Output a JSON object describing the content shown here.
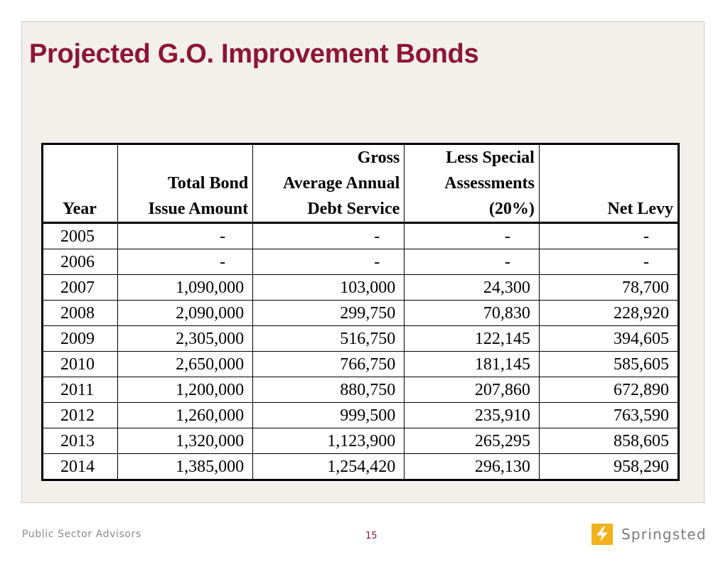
{
  "slide": {
    "title": "Projected G.O. Improvement Bonds"
  },
  "table": {
    "headers": [
      {
        "lines": [
          "Year"
        ]
      },
      {
        "lines": [
          "Total Bond",
          "Issue Amount"
        ]
      },
      {
        "lines": [
          "Gross",
          "Average Annual",
          "Debt Service"
        ]
      },
      {
        "lines": [
          "Less Special",
          "Assessments",
          "(20%)"
        ]
      },
      {
        "lines": [
          "Net Levy"
        ]
      }
    ],
    "rows": [
      {
        "year": "2005",
        "total": "-",
        "gross": "-",
        "less": "-",
        "net": "-"
      },
      {
        "year": "2006",
        "total": "-",
        "gross": "-",
        "less": "-",
        "net": "-"
      },
      {
        "year": "2007",
        "total": "1,090,000",
        "gross": "103,000",
        "less": "24,300",
        "net": "78,700"
      },
      {
        "year": "2008",
        "total": "2,090,000",
        "gross": "299,750",
        "less": "70,830",
        "net": "228,920"
      },
      {
        "year": "2009",
        "total": "2,305,000",
        "gross": "516,750",
        "less": "122,145",
        "net": "394,605"
      },
      {
        "year": "2010",
        "total": "2,650,000",
        "gross": "766,750",
        "less": "181,145",
        "net": "585,605"
      },
      {
        "year": "2011",
        "total": "1,200,000",
        "gross": "880,750",
        "less": "207,860",
        "net": "672,890"
      },
      {
        "year": "2012",
        "total": "1,260,000",
        "gross": "999,500",
        "less": "235,910",
        "net": "763,590"
      },
      {
        "year": "2013",
        "total": "1,320,000",
        "gross": "1,123,900",
        "less": "265,295",
        "net": "858,605"
      },
      {
        "year": "2014",
        "total": "1,385,000",
        "gross": "1,254,420",
        "less": "296,130",
        "net": "958,290"
      }
    ]
  },
  "footer": {
    "left_text": "Public Sector Advisors",
    "page_number": "15",
    "logo_text": "Springsted",
    "logo_icon": "lightning-bolt-icon"
  },
  "colors": {
    "title": "#8c1538",
    "slide_background": "#f3efea",
    "logo_mark": "#f2b21c"
  }
}
